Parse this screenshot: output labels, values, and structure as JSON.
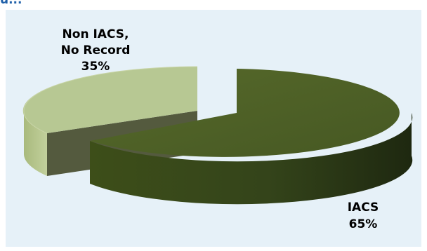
{
  "header": {
    "cut_title": "u..."
  },
  "chart_data": {
    "type": "pie",
    "title": "",
    "three_d": true,
    "exploded": true,
    "slices": [
      {
        "label_lines": [
          "IACS"
        ],
        "value": 65,
        "percent": "65%",
        "color": "#4b5e22"
      },
      {
        "label_lines": [
          "Non IACS,",
          "No Record"
        ],
        "value": 35,
        "percent": "35%",
        "color": "#b5c68e"
      }
    ],
    "legend": "none"
  }
}
